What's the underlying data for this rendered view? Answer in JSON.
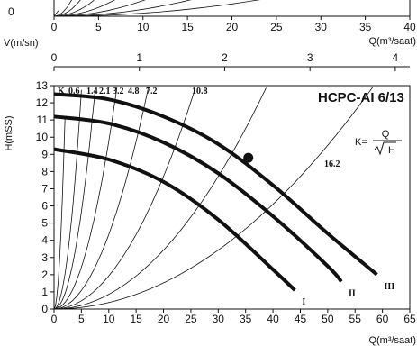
{
  "chart_data": [
    {
      "type": "line",
      "description_visible": "partial top chart (cropped), only x axis shown",
      "x_ticks": [
        "0",
        "5",
        "10",
        "15",
        "20",
        "25",
        "30",
        "35",
        "40"
      ],
      "y_ticks_visible": [
        "0"
      ],
      "xlabel": "Q(m³/saat)",
      "xlim": [
        0,
        40
      ],
      "k_lines": [
        0.6,
        1.4,
        2.1,
        3.2,
        4.8,
        7.2,
        10.8,
        16.2
      ]
    },
    {
      "type": "line",
      "title": "HCPC-AI  6/13",
      "secondary_axis": {
        "label": "V(m/sn)",
        "ticks": [
          "0",
          "1",
          "2",
          "3",
          "4"
        ],
        "range": [
          0,
          4.17
        ]
      },
      "xlabel": "Q(m³/saat)",
      "ylabel": "H(mSS)",
      "xlim": [
        0,
        65
      ],
      "ylim": [
        0,
        13
      ],
      "x_ticks": [
        "0",
        "5",
        "10",
        "15",
        "20",
        "25",
        "30",
        "35",
        "40",
        "45",
        "50",
        "55",
        "60",
        "65"
      ],
      "y_ticks": [
        "0",
        "1",
        "2",
        "3",
        "4",
        "5",
        "6",
        "7",
        "8",
        "9",
        "10",
        "11",
        "12",
        "13"
      ],
      "formula_label": "K=",
      "formula_num": "Q",
      "formula_den": "H",
      "k_header": "K",
      "k_lines": [
        {
          "k": 0.6,
          "label": "0.6"
        },
        {
          "k": 1.4,
          "label": "1.4"
        },
        {
          "k": 2.1,
          "label": "2.1"
        },
        {
          "k": 3.2,
          "label": "3.2"
        },
        {
          "k": 4.8,
          "label": "4.8"
        },
        {
          "k": 7.2,
          "label": "7.2"
        },
        {
          "k": 10.8,
          "label": "10.8"
        },
        {
          "k": 16.2,
          "label": "16.2"
        }
      ],
      "series": [
        {
          "name": "III",
          "points": [
            [
              0,
              12.5
            ],
            [
              10,
              12.2
            ],
            [
              20,
              11.2
            ],
            [
              30,
              9.6
            ],
            [
              40,
              7.2
            ],
            [
              50,
              4.4
            ],
            [
              59,
              2.0
            ]
          ]
        },
        {
          "name": "II",
          "points": [
            [
              0,
              11.2
            ],
            [
              10,
              10.8
            ],
            [
              20,
              9.7
            ],
            [
              30,
              7.9
            ],
            [
              40,
              5.4
            ],
            [
              50,
              2.5
            ],
            [
              52.5,
              1.6
            ]
          ]
        },
        {
          "name": "I",
          "points": [
            [
              0,
              9.3
            ],
            [
              10,
              8.7
            ],
            [
              20,
              7.4
            ],
            [
              30,
              5.2
            ],
            [
              40,
              2.3
            ],
            [
              44,
              1.1
            ]
          ]
        }
      ],
      "operating_point": {
        "q": 35.5,
        "h": 8.8
      },
      "colors": {
        "curve": "#111111",
        "grid": "#111111",
        "background": "#ffffff"
      }
    }
  ]
}
